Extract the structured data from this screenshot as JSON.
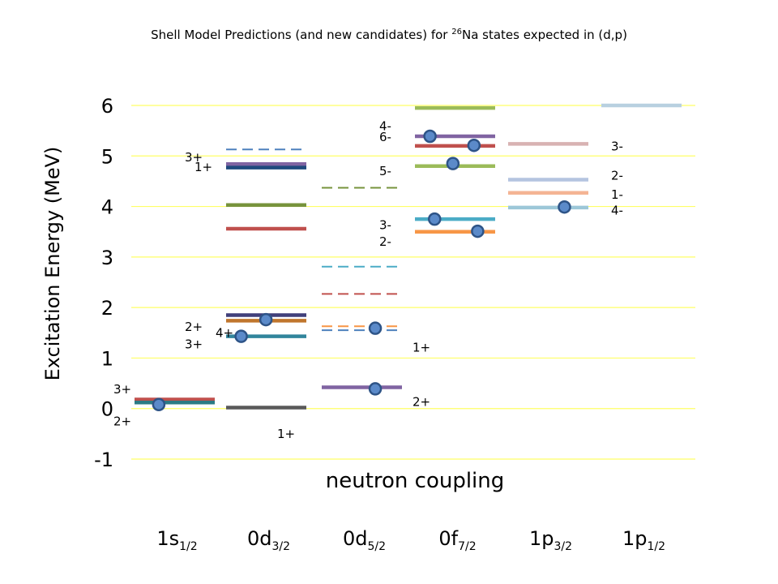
{
  "title": {
    "pre": "Shell Model Predictions (and new candidates) for ",
    "sup": "26",
    "post": "Na states expected in (d,p)"
  },
  "colors": {
    "grid": "#ffff66",
    "marker_fill": "#5b8ac9",
    "marker_stroke": "#2e5487"
  },
  "chart_data": {
    "type": "level-scheme",
    "title": "Shell Model Predictions (and new candidates) for 26Na states expected in (d,p)",
    "ylabel": "Excitation Energy (MeV)",
    "xlabel": "neutron coupling",
    "ylim": [
      -1,
      6
    ],
    "yticks": [
      "-1",
      "0",
      "1",
      "2",
      "3",
      "4",
      "5",
      "6"
    ],
    "grid": true,
    "categories": [
      {
        "main": "1s",
        "sub": "1/2"
      },
      {
        "main": "0d",
        "sub": "3/2"
      },
      {
        "main": "0d",
        "sub": "5/2"
      },
      {
        "main": "0f",
        "sub": "7/2"
      },
      {
        "main": "1p",
        "sub": "3/2"
      },
      {
        "main": "1p",
        "sub": "1/2"
      }
    ],
    "levels": [
      {
        "col": 0,
        "e": 0.18,
        "color": "#c0504d",
        "style": "solid"
      },
      {
        "col": 0,
        "e": 0.12,
        "color": "#2c7b85",
        "style": "solid"
      },
      {
        "col": 1,
        "e": 5.13,
        "color": "#4f81bd",
        "style": "dashed"
      },
      {
        "col": 1,
        "e": 4.84,
        "color": "#8064a2",
        "style": "solid"
      },
      {
        "col": 1,
        "e": 4.77,
        "color": "#1f497d",
        "style": "solid"
      },
      {
        "col": 1,
        "e": 4.03,
        "color": "#77933c",
        "style": "solid"
      },
      {
        "col": 1,
        "e": 3.56,
        "color": "#c0504d",
        "style": "solid"
      },
      {
        "col": 1,
        "e": 1.85,
        "color": "#403f7a",
        "style": "solid"
      },
      {
        "col": 1,
        "e": 1.74,
        "color": "#c0762d",
        "style": "solid"
      },
      {
        "col": 1,
        "e": 1.43,
        "color": "#31859c",
        "style": "solid"
      },
      {
        "col": 1,
        "e": 0.02,
        "color": "#595959",
        "style": "solid"
      },
      {
        "col": 2,
        "e": 4.37,
        "color": "#77933c",
        "style": "dashed"
      },
      {
        "col": 2,
        "e": 2.81,
        "color": "#4bacc6",
        "style": "dashed"
      },
      {
        "col": 2,
        "e": 2.27,
        "color": "#c0504d",
        "style": "dashed"
      },
      {
        "col": 2,
        "e": 1.63,
        "color": "#f79646",
        "style": "dashed"
      },
      {
        "col": 2,
        "e": 1.55,
        "color": "#4f81bd",
        "style": "dashed"
      },
      {
        "col": 2,
        "e": 0.42,
        "color": "#8064a2",
        "style": "solid"
      },
      {
        "col": 3,
        "e": 5.95,
        "color": "#9bbb59",
        "style": "solid"
      },
      {
        "col": 3,
        "e": 5.39,
        "color": "#8064a2",
        "style": "solid"
      },
      {
        "col": 3,
        "e": 5.2,
        "color": "#c0504d",
        "style": "solid"
      },
      {
        "col": 3,
        "e": 4.8,
        "color": "#9bbb59",
        "style": "solid"
      },
      {
        "col": 3,
        "e": 3.75,
        "color": "#4bacc6",
        "style": "solid"
      },
      {
        "col": 3,
        "e": 3.5,
        "color": "#f79646",
        "style": "solid"
      },
      {
        "col": 4,
        "e": 5.24,
        "color": "#d8b2b2",
        "style": "solid"
      },
      {
        "col": 4,
        "e": 4.53,
        "color": "#b4c4e0",
        "style": "solid"
      },
      {
        "col": 4,
        "e": 4.27,
        "color": "#f4b494",
        "style": "solid"
      },
      {
        "col": 4,
        "e": 3.98,
        "color": "#9cc7d8",
        "style": "solid"
      },
      {
        "col": 5,
        "e": 6.0,
        "color": "#b8d0e0",
        "style": "solid"
      }
    ],
    "markers": [
      {
        "col": 0,
        "frac": 0.3,
        "e": 0.08
      },
      {
        "col": 1,
        "frac": 0.47,
        "e": 1.76
      },
      {
        "col": 1,
        "frac": 0.2,
        "e": 1.43
      },
      {
        "col": 2,
        "frac": 0.62,
        "e": 1.59
      },
      {
        "col": 2,
        "frac": 0.62,
        "e": 0.39
      },
      {
        "col": 3,
        "frac": 0.2,
        "e": 5.39
      },
      {
        "col": 3,
        "frac": 0.68,
        "e": 5.21
      },
      {
        "col": 3,
        "frac": 0.45,
        "e": 4.85
      },
      {
        "col": 3,
        "frac": 0.25,
        "e": 3.75
      },
      {
        "col": 3,
        "frac": 0.72,
        "e": 3.51
      },
      {
        "col": 4,
        "frac": 0.65,
        "e": 3.99
      }
    ],
    "labels": [
      {
        "text": "3+",
        "col": 0,
        "side": "left",
        "e": 0.38
      },
      {
        "text": "2+",
        "col": 0,
        "side": "left",
        "e": -0.25
      },
      {
        "text": "3+",
        "col": 1,
        "side": "left",
        "e": 4.97
      },
      {
        "text": "1+",
        "col": 1,
        "side": "left",
        "e": 4.78
      },
      {
        "text": "2+",
        "col": 1,
        "side": "left",
        "e": 1.62
      },
      {
        "text": "4+",
        "col": 1,
        "side": "left2",
        "e": 1.5
      },
      {
        "text": "3+",
        "col": 1,
        "side": "left",
        "e": 1.27
      },
      {
        "text": "1+",
        "col": 1,
        "side": "right",
        "e": -0.5
      },
      {
        "text": "4-",
        "col": 2,
        "side": "right",
        "e": 5.59
      },
      {
        "text": "6-",
        "col": 2,
        "side": "right",
        "e": 5.37
      },
      {
        "text": "5-",
        "col": 2,
        "side": "right",
        "e": 4.7
      },
      {
        "text": "3-",
        "col": 2,
        "side": "right",
        "e": 3.63
      },
      {
        "text": "2-",
        "col": 2,
        "side": "right",
        "e": 3.3
      },
      {
        "text": "1+",
        "col": 2,
        "side": "right2",
        "e": 1.21
      },
      {
        "text": "2+",
        "col": 2,
        "side": "right2",
        "e": 0.13
      },
      {
        "text": "3-",
        "col": 4,
        "side": "right",
        "e": 5.19
      },
      {
        "text": "2-",
        "col": 4,
        "side": "right",
        "e": 4.61
      },
      {
        "text": "1-",
        "col": 4,
        "side": "right",
        "e": 4.23
      },
      {
        "text": "4-",
        "col": 4,
        "side": "right",
        "e": 3.92
      }
    ]
  }
}
